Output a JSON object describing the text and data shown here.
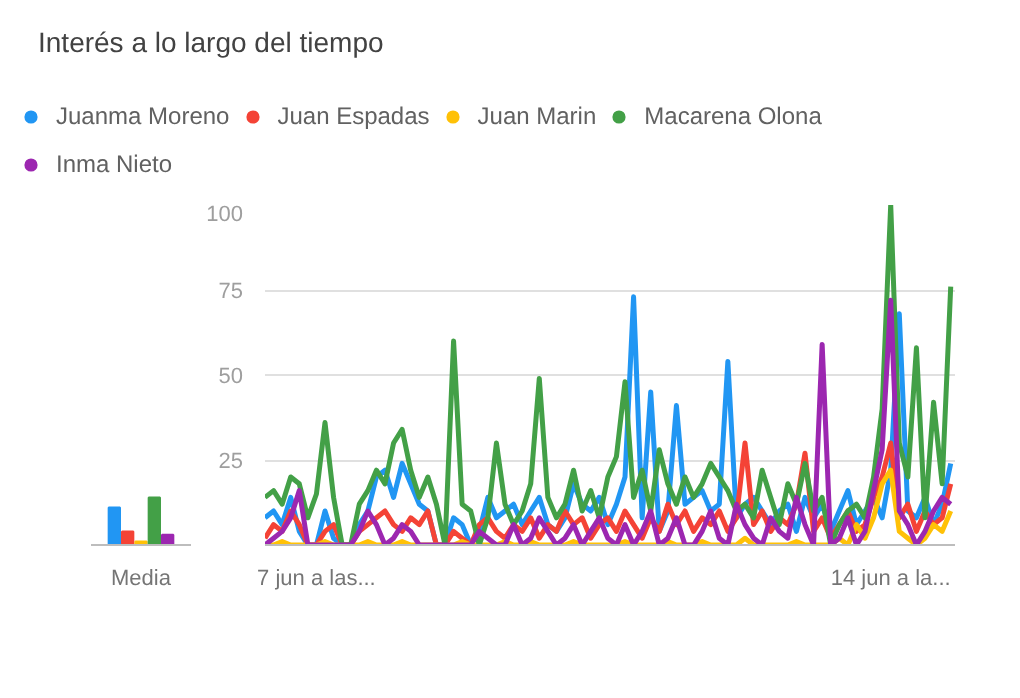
{
  "chart_data": [
    {
      "type": "bar",
      "categories": [
        "Media"
      ],
      "ylim": [
        0,
        100
      ],
      "tick_labels": "x",
      "grid": false,
      "legend": "top",
      "series": [
        {
          "name": "Juanma Moreno",
          "color": "#2196f3",
          "values": [
            11
          ]
        },
        {
          "name": "Juan Espadas",
          "color": "#f44336",
          "values": [
            4
          ]
        },
        {
          "name": "Juan Marin",
          "color": "#ffc107",
          "values": [
            1
          ]
        },
        {
          "name": "Macarena Olona",
          "color": "#43a047",
          "values": [
            14
          ]
        },
        {
          "name": "Inma Nieto",
          "color": "#9c27b0",
          "values": [
            3
          ]
        }
      ]
    },
    {
      "type": "line",
      "title": "Interés a lo largo del tiempo",
      "grid": "y",
      "marker": "none",
      "categories": [
        null,
        null,
        null,
        null,
        null,
        null,
        "7 jun a las...",
        null,
        null,
        null,
        null,
        null,
        null,
        null,
        null,
        null,
        null,
        null,
        null,
        null,
        null,
        null,
        null,
        null,
        null,
        null,
        null,
        null,
        null,
        null,
        null,
        null,
        null,
        null,
        null,
        null,
        null,
        null,
        null,
        null,
        null,
        null,
        null,
        null,
        null,
        null,
        null,
        null,
        null,
        null,
        null,
        null,
        null,
        null,
        null,
        null,
        null,
        null,
        null,
        null,
        null,
        null,
        null,
        null,
        null,
        null,
        null,
        null,
        null,
        null,
        null,
        null,
        null,
        "14 jun a la...",
        null,
        null,
        null,
        null,
        null,
        null,
        null
      ],
      "ylim": [
        0,
        100
      ],
      "yticks": [
        25,
        50,
        75,
        100
      ],
      "series": [
        {
          "color": "#2196f3",
          "values": [
            8,
            10,
            6,
            14,
            4,
            0,
            0,
            10,
            2,
            0,
            0,
            6,
            10,
            20,
            22,
            14,
            24,
            18,
            12,
            10,
            0,
            0,
            8,
            6,
            0,
            4,
            14,
            8,
            10,
            12,
            6,
            10,
            14,
            6,
            4,
            8,
            18,
            12,
            10,
            14,
            6,
            12,
            20,
            73,
            8,
            45,
            4,
            10,
            41,
            12,
            14,
            16,
            10,
            12,
            54,
            8,
            12,
            14,
            10,
            6,
            10,
            12,
            4,
            14,
            8,
            12,
            4,
            10,
            16,
            6,
            10,
            14,
            8,
            22,
            68,
            10,
            8,
            14,
            6,
            12,
            24
          ]
        },
        {
          "color": "#f44336",
          "values": [
            2,
            6,
            4,
            10,
            6,
            0,
            0,
            4,
            6,
            0,
            0,
            4,
            6,
            8,
            10,
            6,
            4,
            8,
            6,
            10,
            0,
            0,
            4,
            2,
            0,
            6,
            8,
            4,
            2,
            6,
            4,
            8,
            2,
            6,
            4,
            10,
            6,
            8,
            2,
            6,
            8,
            4,
            10,
            6,
            2,
            8,
            4,
            12,
            6,
            10,
            4,
            8,
            6,
            10,
            4,
            8,
            30,
            6,
            10,
            4,
            8,
            6,
            12,
            27,
            4,
            8,
            2,
            6,
            10,
            4,
            6,
            14,
            20,
            30,
            8,
            12,
            4,
            10,
            6,
            8,
            18
          ]
        },
        {
          "color": "#ffc107",
          "values": [
            0,
            0,
            1,
            0,
            0,
            0,
            0,
            1,
            0,
            0,
            0,
            0,
            1,
            0,
            0,
            0,
            1,
            0,
            0,
            0,
            0,
            0,
            0,
            1,
            0,
            0,
            0,
            0,
            1,
            0,
            0,
            1,
            0,
            0,
            0,
            0,
            1,
            0,
            0,
            0,
            0,
            0,
            1,
            0,
            0,
            0,
            0,
            1,
            0,
            0,
            0,
            1,
            0,
            0,
            0,
            0,
            2,
            0,
            0,
            0,
            0,
            0,
            1,
            0,
            0,
            0,
            0,
            2,
            0,
            6,
            2,
            8,
            18,
            22,
            4,
            2,
            0,
            2,
            6,
            4,
            10
          ]
        },
        {
          "color": "#43a047",
          "values": [
            14,
            16,
            12,
            20,
            18,
            8,
            15,
            36,
            14,
            0,
            0,
            12,
            16,
            22,
            18,
            30,
            34,
            22,
            14,
            20,
            12,
            0,
            60,
            12,
            10,
            0,
            8,
            30,
            12,
            6,
            10,
            18,
            49,
            14,
            8,
            12,
            22,
            10,
            16,
            8,
            20,
            26,
            48,
            14,
            22,
            10,
            28,
            18,
            12,
            20,
            14,
            18,
            24,
            20,
            16,
            10,
            12,
            8,
            22,
            14,
            6,
            18,
            12,
            24,
            10,
            14,
            0,
            6,
            10,
            12,
            8,
            20,
            40,
            100,
            30,
            20,
            58,
            8,
            42,
            18,
            76
          ]
        },
        {
          "color": "#9c27b0",
          "values": [
            0,
            2,
            4,
            8,
            16,
            0,
            0,
            0,
            0,
            0,
            0,
            4,
            10,
            6,
            0,
            2,
            6,
            4,
            0,
            0,
            0,
            0,
            0,
            0,
            0,
            4,
            2,
            0,
            0,
            6,
            0,
            2,
            8,
            4,
            0,
            2,
            6,
            0,
            4,
            8,
            2,
            0,
            6,
            0,
            4,
            10,
            0,
            2,
            8,
            0,
            0,
            4,
            10,
            2,
            0,
            12,
            6,
            2,
            0,
            8,
            4,
            2,
            14,
            6,
            0,
            59,
            0,
            2,
            8,
            0,
            4,
            16,
            28,
            72,
            10,
            6,
            0,
            4,
            10,
            14,
            12
          ]
        }
      ]
    }
  ]
}
